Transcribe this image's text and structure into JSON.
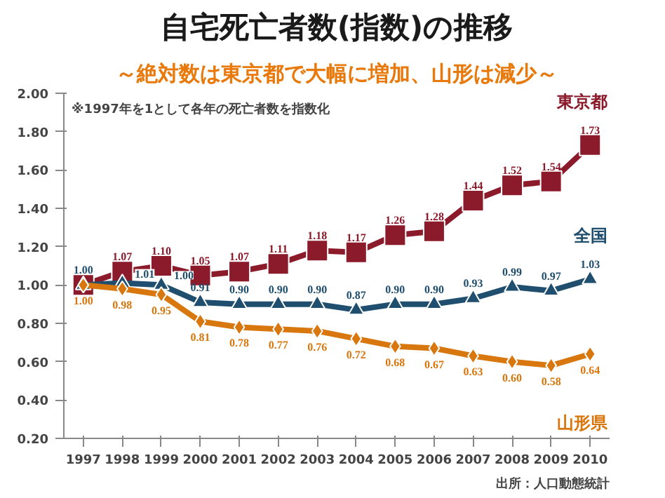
{
  "chart_data": {
    "type": "line",
    "title": "自宅死亡者数(指数)の推移",
    "subtitle": "～絶対数は東京都で大幅に増加、山形は減少～",
    "categories": [
      "1997",
      "1998",
      "1999",
      "2000",
      "2001",
      "2002",
      "2003",
      "2004",
      "2005",
      "2006",
      "2007",
      "2008",
      "2009",
      "2010"
    ],
    "series": [
      {
        "name": "東京都",
        "color": "#8b1a2b",
        "marker": "square",
        "values": [
          1.0,
          1.07,
          1.1,
          1.05,
          1.07,
          1.11,
          1.18,
          1.17,
          1.26,
          1.28,
          1.44,
          1.52,
          1.54,
          1.73
        ],
        "value_labels": [
          null,
          "1.07",
          "1.10",
          "1.05",
          "1.07",
          "1.11",
          "1.18",
          "1.17",
          "1.26",
          "1.28",
          "1.44",
          "1.52",
          "1.54",
          "1.73"
        ]
      },
      {
        "name": "全国",
        "color": "#1f4e6e",
        "marker": "triangle",
        "values": [
          1.0,
          1.01,
          1.0,
          0.91,
          0.9,
          0.9,
          0.9,
          0.87,
          0.9,
          0.9,
          0.93,
          0.99,
          0.97,
          1.03
        ],
        "value_labels": [
          "1.00",
          "1.01",
          "1.00",
          "0.91",
          "0.90",
          "0.90",
          "0.90",
          "0.87",
          "0.90",
          "0.90",
          "0.93",
          "0.99",
          "0.97",
          "1.03"
        ]
      },
      {
        "name": "山形県",
        "color": "#d9770f",
        "marker": "diamond",
        "values": [
          1.0,
          0.98,
          0.95,
          0.81,
          0.78,
          0.77,
          0.76,
          0.72,
          0.68,
          0.67,
          0.63,
          0.6,
          0.58,
          0.64
        ],
        "value_labels": [
          "1.00",
          "0.98",
          "0.95",
          "0.81",
          "0.78",
          "0.77",
          "0.76",
          "0.72",
          "0.68",
          "0.67",
          "0.63",
          "0.60",
          "0.58",
          "0.64"
        ]
      }
    ],
    "ylim": [
      0.2,
      2.0
    ],
    "yticks": [
      {
        "value": 0.2,
        "label": "0.20"
      },
      {
        "value": 0.4,
        "label": "0.40"
      },
      {
        "value": 0.6,
        "label": "0.60"
      },
      {
        "value": 0.8,
        "label": "0.80"
      },
      {
        "value": 1.0,
        "label": "1.00"
      },
      {
        "value": 1.2,
        "label": "1.20"
      },
      {
        "value": 1.4,
        "label": "1.40"
      },
      {
        "value": 1.6,
        "label": "1.60"
      },
      {
        "value": 1.8,
        "label": "1.80"
      },
      {
        "value": 2.0,
        "label": "2.00"
      }
    ],
    "grid": false,
    "line_style": "solid",
    "annotations": [
      "※1997年を1として各年の死亡者数を指数化",
      "出所：人口動態統計"
    ]
  }
}
